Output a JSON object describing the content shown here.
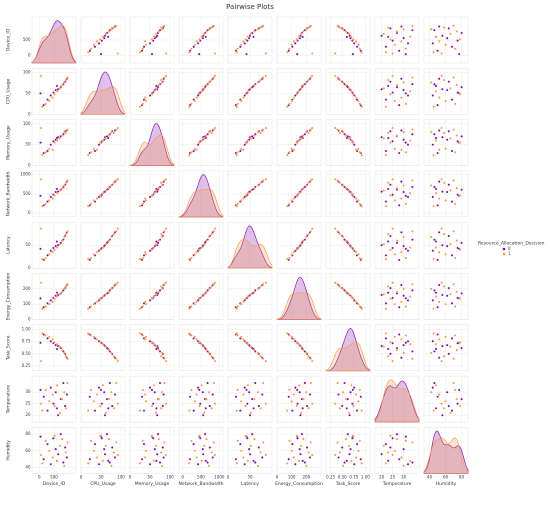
{
  "chart_data": {
    "type": "pairplot",
    "title": "Pairwise Plots",
    "grid": true,
    "legend_position": "right",
    "legend_title": "Resource_Allocation_Decision",
    "variables": [
      {
        "label": "Device_ID",
        "lim": [
          -250,
          1250
        ],
        "ticks": [
          0,
          500
        ]
      },
      {
        "label": "CPU_Usage",
        "lim": [
          0,
          110
        ],
        "ticks": [
          0,
          50,
          100
        ]
      },
      {
        "label": "Memory_Usage",
        "lim": [
          0,
          110
        ],
        "ticks": [
          0,
          50,
          100
        ]
      },
      {
        "label": "Network_Bandwidth",
        "lim": [
          -100,
          1100
        ],
        "ticks": [
          0,
          500,
          1000
        ]
      },
      {
        "label": "Latency",
        "lim": [
          0,
          100
        ],
        "ticks": [
          0,
          50
        ]
      },
      {
        "label": "Energy_Consumption",
        "lim": [
          0,
          300
        ],
        "ticks": [
          0,
          100,
          200
        ]
      },
      {
        "label": "Task_Score",
        "lim": [
          0.15,
          1.1
        ],
        "ticks": [
          {
            "value": 0.25,
            "label": "0.25"
          },
          {
            "value": 0.5,
            "label": "0.50"
          },
          {
            "value": 0.75,
            "label": "0.75"
          },
          {
            "value": 1,
            "label": "1.00"
          }
        ]
      },
      {
        "label": "Temperature",
        "lim": [
          17,
          37
        ],
        "ticks": [
          20,
          25,
          30
        ]
      },
      {
        "label": "Humidity",
        "lim": [
          33,
          88
        ],
        "ticks": [
          40,
          60,
          80
        ]
      }
    ],
    "series": [
      {
        "name": "0",
        "color": "#7e03a8",
        "points": [
          [
            150,
            22,
            30,
            200,
            18,
            80,
            0.9,
            28,
            50
          ],
          [
            280,
            35,
            35,
            300,
            28,
            105,
            0.82,
            22,
            68
          ],
          [
            390,
            45,
            50,
            420,
            38,
            125,
            0.76,
            32,
            44
          ],
          [
            480,
            52,
            58,
            480,
            44,
            140,
            0.72,
            25,
            75
          ],
          [
            560,
            58,
            62,
            550,
            48,
            155,
            0.68,
            30,
            62
          ],
          [
            640,
            60,
            68,
            560,
            50,
            160,
            0.66,
            20,
            56
          ],
          [
            730,
            65,
            70,
            610,
            55,
            170,
            0.62,
            27,
            80
          ],
          [
            820,
            72,
            75,
            680,
            62,
            190,
            0.55,
            34,
            46
          ],
          [
            880,
            78,
            82,
            740,
            70,
            205,
            0.5,
            24,
            64
          ],
          [
            940,
            85,
            84,
            820,
            78,
            225,
            0.42,
            29,
            52
          ],
          [
            40,
            50,
            55,
            450,
            42,
            138,
            0.73,
            31,
            77
          ],
          [
            600,
            68,
            66,
            630,
            58,
            175,
            0.6,
            23,
            48
          ]
        ]
      },
      {
        "name": "1",
        "color": "#f89540",
        "points": [
          [
            102,
            18,
            25,
            180,
            20,
            70,
            0.92,
            22,
            45
          ],
          [
            215,
            25,
            32,
            240,
            22,
            85,
            0.88,
            31,
            72
          ],
          [
            340,
            32,
            40,
            330,
            30,
            100,
            0.85,
            26,
            60
          ],
          [
            455,
            40,
            38,
            380,
            35,
            115,
            0.8,
            29,
            52
          ],
          [
            520,
            48,
            55,
            460,
            40,
            135,
            0.74,
            24,
            78
          ],
          [
            610,
            55,
            60,
            520,
            45,
            150,
            0.7,
            33,
            48
          ],
          [
            700,
            62,
            65,
            590,
            52,
            165,
            0.65,
            21,
            66
          ],
          [
            780,
            70,
            72,
            650,
            60,
            180,
            0.58,
            27,
            74
          ],
          [
            850,
            76,
            80,
            720,
            68,
            200,
            0.52,
            30,
            42
          ],
          [
            905,
            82,
            78,
            790,
            74,
            215,
            0.45,
            23,
            58
          ],
          [
            960,
            88,
            86,
            850,
            80,
            230,
            0.4,
            34,
            70
          ],
          [
            60,
            92,
            90,
            880,
            86,
            240,
            0.35,
            25,
            55
          ]
        ]
      }
    ]
  }
}
